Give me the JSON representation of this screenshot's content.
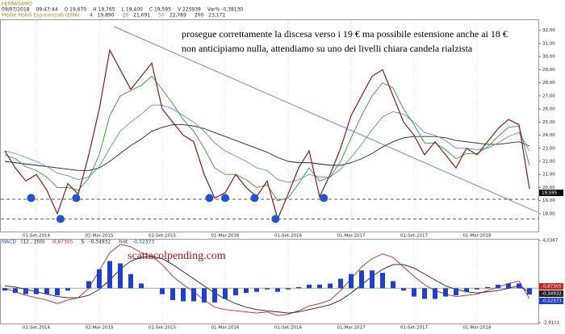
{
  "chart_data": [
    {
      "type": "line",
      "title": "FERRAGAMO",
      "info": [
        "09/07/2018",
        "09:47:44",
        "O 19,670",
        "H 19,765",
        "L 19,400",
        "C 19,595",
        "V 225939",
        "Var% -0,38130"
      ],
      "legend_title": "Medie Mobili Esponenziali (EMA)",
      "annotations": [
        "prosegue correttamente la discesa verso i 19 € ma possibile estensione anche ai 18 €",
        "non anticipiamo nulla, attendiamo su uno dei livelli chiara candela rialzista"
      ],
      "categories": [
        null,
        null,
        null,
        "01-Set-2014",
        null,
        null,
        null,
        null,
        null,
        "02-Mar-2015",
        null,
        null,
        null,
        null,
        null,
        "01-Set-2015",
        null,
        null,
        null,
        null,
        null,
        "01-Mar-2016",
        null,
        null,
        null,
        null,
        null,
        "01-Set-2016",
        null,
        null,
        null,
        null,
        null,
        "01-Mar-2017",
        null,
        null,
        null,
        null,
        null,
        "01-Set-2017",
        null,
        null,
        null,
        null,
        null,
        "01-Mar-2018",
        null,
        null,
        null,
        null,
        null
      ],
      "series": [
        {
          "name": "4",
          "color": "#8b1a1a",
          "last_label": "19,890",
          "values": [
            22.8,
            21.5,
            20.5,
            21.0,
            19.8,
            18.0,
            20.3,
            19.5,
            22.5,
            26.0,
            30.5,
            29.0,
            27.5,
            28.5,
            29.5,
            26.0,
            25.0,
            24.0,
            23.5,
            21.0,
            19.2,
            19.6,
            21.0,
            20.0,
            19.3,
            20.5,
            17.6,
            19.5,
            21.5,
            22.8,
            19.3,
            21.0,
            23.0,
            25.5,
            27.0,
            28.5,
            29.0,
            27.0,
            25.0,
            24.0,
            22.5,
            23.5,
            22.5,
            21.5,
            23.0,
            22.5,
            23.5,
            24.5,
            25.2,
            24.8,
            19.89
          ]
        },
        {
          "name": "20",
          "color": "#2e9a2e",
          "last_label": "21,691",
          "values": [
            22.5,
            22.2,
            21.6,
            21.3,
            20.8,
            20.0,
            20.0,
            19.8,
            20.7,
            22.5,
            25.5,
            27.0,
            27.4,
            27.8,
            28.5,
            27.5,
            26.4,
            25.2,
            24.3,
            23.0,
            21.5,
            21.0,
            21.0,
            20.6,
            20.0,
            20.2,
            19.0,
            19.2,
            20.3,
            21.5,
            20.5,
            20.8,
            22.0,
            23.8,
            25.5,
            27.0,
            28.0,
            27.6,
            26.0,
            24.8,
            23.4,
            23.4,
            22.9,
            22.2,
            22.6,
            22.6,
            23.1,
            23.9,
            24.6,
            24.7,
            21.691
          ]
        },
        {
          "name": "50",
          "color": "#5b8fd6",
          "last_label": "22,789",
          "values": [
            22.8,
            22.6,
            22.3,
            22.0,
            21.6,
            21.1,
            20.9,
            20.6,
            20.8,
            21.6,
            23.0,
            24.3,
            25.0,
            25.6,
            26.3,
            26.3,
            26.0,
            25.5,
            25.0,
            24.3,
            23.4,
            22.8,
            22.4,
            22.0,
            21.5,
            21.3,
            20.6,
            20.4,
            20.6,
            21.0,
            20.8,
            20.8,
            21.4,
            22.3,
            23.3,
            24.4,
            25.4,
            25.8,
            25.6,
            25.0,
            24.2,
            24.0,
            23.6,
            23.0,
            23.0,
            22.9,
            23.0,
            23.4,
            23.9,
            24.2,
            22.789
          ]
        },
        {
          "name": "200",
          "color": "#222222",
          "last_label": "23,171",
          "values": [
            22.0,
            21.9,
            21.8,
            21.7,
            21.6,
            21.5,
            21.4,
            21.3,
            21.3,
            21.5,
            22.0,
            22.6,
            23.2,
            23.7,
            24.3,
            24.6,
            24.8,
            24.8,
            24.7,
            24.5,
            24.2,
            23.9,
            23.6,
            23.3,
            23.0,
            22.7,
            22.3,
            22.0,
            21.9,
            21.9,
            21.8,
            21.7,
            21.7,
            21.9,
            22.2,
            22.6,
            23.1,
            23.5,
            23.8,
            23.9,
            23.9,
            23.9,
            23.8,
            23.6,
            23.5,
            23.4,
            23.3,
            23.3,
            23.4,
            23.5,
            23.171
          ]
        }
      ],
      "ylim": [
        16.7,
        32.6
      ],
      "yticks": [
        {
          "value": 18,
          "label": "18,00"
        },
        {
          "value": 19,
          "label": "19,00"
        },
        {
          "value": 20,
          "label": "20,00"
        },
        {
          "value": 21,
          "label": "21,00"
        },
        {
          "value": 22,
          "label": "22,00"
        },
        {
          "value": 23,
          "label": "23,00"
        },
        {
          "value": 24,
          "label": "24,00"
        },
        {
          "value": 25,
          "label": "25,00"
        },
        {
          "value": 26,
          "label": "26,00"
        },
        {
          "value": 27,
          "label": "27,00"
        },
        {
          "value": 28,
          "label": "28,00"
        },
        {
          "value": 29,
          "label": "29,00"
        },
        {
          "value": 30,
          "label": "30,00"
        },
        {
          "value": 31,
          "label": "31,00"
        },
        {
          "value": 32,
          "label": "32,00"
        }
      ],
      "last_price": {
        "value": 19.595,
        "label": "19,595"
      },
      "levels": [
        19.1,
        17.6
      ],
      "markers": {
        "color": "#2255cc",
        "x": [
          2.5,
          5.3,
          6.8,
          19.5,
          21,
          23.8,
          25.8,
          30.4
        ],
        "y": [
          19.2,
          17.6,
          19.2,
          19.2,
          19.2,
          19.2,
          17.6,
          19.2
        ]
      },
      "trendline": {
        "color": "#6a8fd8",
        "x": [
          10.4,
          50.8
        ],
        "y": [
          32.3,
          18.1
        ]
      },
      "grid": true
    },
    {
      "type": "macd",
      "title": "MACD",
      "params": "(12 , 200)",
      "watermark": "scattacolpending.com",
      "categories": [
        null,
        null,
        null,
        "01-Set-2014",
        null,
        null,
        null,
        null,
        null,
        "02-Mar-2015",
        null,
        null,
        null,
        null,
        null,
        "01-Set-2015",
        null,
        null,
        null,
        null,
        null,
        "01-Mar-2016",
        null,
        null,
        null,
        null,
        null,
        "01-Set-2016",
        null,
        null,
        null,
        null,
        null,
        "01-Mar-2017",
        null,
        null,
        null,
        null,
        null,
        "01-Set-2017",
        null,
        null,
        null,
        null,
        null,
        "01-Mar-2018",
        null,
        null,
        null,
        null,
        null
      ],
      "series": [
        {
          "name": "MACD",
          "kind": "line",
          "color": "#cc2222",
          "last_label": "-0,87305",
          "values": [
            0.0,
            -0.3,
            -0.6,
            -0.8,
            -1.0,
            -1.3,
            -1.0,
            -0.8,
            0.0,
            1.5,
            3.0,
            3.7,
            3.5,
            3.0,
            2.7,
            2.0,
            1.0,
            0.3,
            -0.3,
            -1.0,
            -1.6,
            -1.8,
            -1.9,
            -2.0,
            -2.1,
            -2.0,
            -2.3,
            -2.2,
            -1.9,
            -1.5,
            -1.3,
            -1.0,
            -0.2,
            0.8,
            1.8,
            2.5,
            2.9,
            2.6,
            1.8,
            1.0,
            0.3,
            -0.2,
            -0.5,
            -0.7,
            -0.6,
            -0.5,
            -0.2,
            0.1,
            0.4,
            0.6,
            -0.87305
          ]
        },
        {
          "name": "S",
          "kind": "line",
          "color": "#222222",
          "last_label": "-0,34932",
          "values": [
            0.2,
            0.1,
            -0.1,
            -0.3,
            -0.5,
            -0.7,
            -0.8,
            -0.8,
            -0.6,
            -0.1,
            0.7,
            1.6,
            2.3,
            2.6,
            2.7,
            2.5,
            2.0,
            1.4,
            0.8,
            0.2,
            -0.4,
            -0.9,
            -1.3,
            -1.6,
            -1.8,
            -1.9,
            -2.0,
            -2.1,
            -2.0,
            -1.8,
            -1.6,
            -1.4,
            -1.0,
            -0.4,
            0.3,
            1.0,
            1.6,
            2.0,
            2.0,
            1.7,
            1.2,
            0.7,
            0.2,
            -0.1,
            -0.3,
            -0.4,
            -0.3,
            -0.2,
            0.0,
            0.2,
            -0.34932
          ]
        },
        {
          "name": "hist",
          "kind": "bar",
          "color": "#1f3fcf",
          "last_label": "-0,52373",
          "values": [
            -0.2,
            -0.4,
            -0.5,
            -0.5,
            -0.5,
            -0.6,
            -0.2,
            0.0,
            0.6,
            1.6,
            2.3,
            2.1,
            1.2,
            0.4,
            0.0,
            -0.5,
            -1.0,
            -1.1,
            -1.1,
            -1.2,
            -1.2,
            -0.9,
            -0.6,
            -0.4,
            -0.3,
            -0.1,
            -0.3,
            -0.1,
            0.1,
            0.3,
            0.3,
            0.4,
            0.8,
            1.2,
            1.5,
            1.5,
            1.3,
            0.6,
            -0.2,
            -0.7,
            -0.9,
            -0.9,
            -0.7,
            -0.6,
            -0.3,
            -0.1,
            0.1,
            0.3,
            0.4,
            0.4,
            -0.52373
          ]
        }
      ],
      "ylim": [
        -2.9111,
        4.0387
      ],
      "yticks": [
        {
          "value": 4.0387,
          "label": "4,0387"
        },
        {
          "value": -2.9111,
          "label": "-2,9111"
        }
      ],
      "grid": true
    }
  ]
}
